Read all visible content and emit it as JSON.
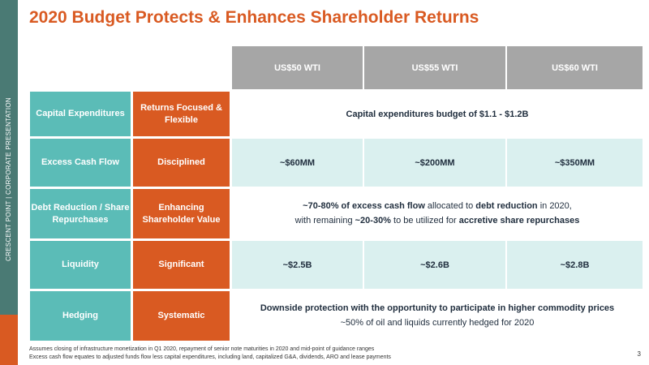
{
  "sidebar": {
    "text": "CRESCENT POINT  |  CORPORATE PRESENTATION"
  },
  "title": "2020 Budget Protects & Enhances Shareholder Returns",
  "columns": [
    "US$50 WTI",
    "US$55 WTI",
    "US$60 WTI"
  ],
  "rows": [
    {
      "label": "Capital Expenditures",
      "descriptor": "Returns Focused & Flexible",
      "merged": "Capital expenditures budget of $1.1 - $1.2B"
    },
    {
      "label": "Excess Cash Flow",
      "descriptor": "Disciplined",
      "values": [
        "~$60MM",
        "~$200MM",
        "~$350MM"
      ]
    },
    {
      "label": "Debt Reduction / Share Repurchases",
      "descriptor": "Enhancing Shareholder Value",
      "line1": {
        "p1": "~70-80% of excess cash flow",
        "p2": " allocated to ",
        "p3": "debt reduction",
        "p4": " in 2020,"
      },
      "line2": {
        "p1": "with remaining ",
        "p2": "~20-30%",
        "p3": " to be utilized for ",
        "p4": "accretive share repurchases"
      }
    },
    {
      "label": "Liquidity",
      "descriptor": "Significant",
      "values": [
        "~$2.5B",
        "~$2.6B",
        "~$2.8B"
      ]
    },
    {
      "label": "Hedging",
      "descriptor": "Systematic",
      "line1": "Downside protection with the opportunity to participate in higher commodity prices",
      "line2": "~50% of oil and liquids currently hedged for 2020"
    }
  ],
  "footnotes": [
    "Assumes closing of infrastructure monetization in Q1 2020, repayment of senior note maturities in 2020 and mid-point of guidance ranges",
    "Excess cash flow equates to adjusted funds flow less capital expenditures, including land, capitalized G&A, dividends, ARO and lease payments"
  ],
  "page_number": "3",
  "colors": {
    "accent_orange": "#d95a22",
    "teal": "#5bbcb7",
    "header_gray": "#a6a6a6",
    "light_teal": "#daf0ef",
    "sidebar_green": "#4a7a74"
  }
}
